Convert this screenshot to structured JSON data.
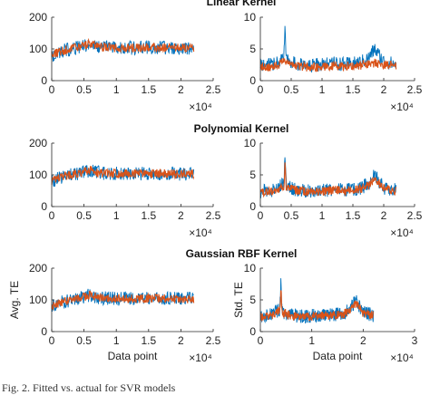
{
  "figure": {
    "caption": "Fig. 2.   Fitted vs. actual for SVR models"
  },
  "colors": {
    "actual": "#0072BD",
    "fitted": "#D95319",
    "axis": "#262626"
  },
  "chart_data": [
    {
      "type": "line",
      "title": "Linear Kernel",
      "xlabel": "",
      "ylabel": "",
      "xlim": [
        0,
        2.5
      ],
      "ylim": [
        0,
        200
      ],
      "xticks": [
        "0",
        "0.5",
        "1",
        "1.5",
        "2",
        "2.5"
      ],
      "yticks": [
        "0",
        "100",
        "200"
      ],
      "x_exponent": "×10⁴",
      "series": [
        {
          "role": "actual",
          "x": [
            0,
            0.1,
            0.2,
            0.3,
            0.4,
            0.5,
            0.6,
            0.7,
            0.8,
            1.0,
            1.2,
            1.4,
            1.6,
            1.8,
            2.0,
            2.2
          ],
          "values": [
            80,
            88,
            95,
            100,
            105,
            110,
            115,
            108,
            105,
            104,
            103,
            104,
            105,
            104,
            103,
            104
          ]
        },
        {
          "role": "fitted",
          "x": [
            0,
            0.1,
            0.2,
            0.3,
            0.4,
            0.5,
            0.6,
            0.7,
            0.8,
            1.0,
            1.2,
            1.4,
            1.6,
            1.8,
            2.0,
            2.2
          ],
          "values": [
            82,
            90,
            96,
            101,
            106,
            111,
            116,
            107,
            104,
            104,
            103,
            104,
            104,
            104,
            103,
            104
          ]
        }
      ]
    },
    {
      "type": "line",
      "title": "",
      "xlabel": "",
      "ylabel": "",
      "xlim": [
        0,
        2.5
      ],
      "ylim": [
        0,
        10
      ],
      "xticks": [
        "0",
        "0.5",
        "1",
        "1.5",
        "2",
        "2.5"
      ],
      "yticks": [
        "0",
        "5",
        "10"
      ],
      "x_exponent": "×10⁴",
      "series": [
        {
          "role": "actual",
          "x": [
            0,
            0.2,
            0.38,
            0.4,
            0.42,
            0.6,
            0.8,
            1.0,
            1.2,
            1.4,
            1.6,
            1.75,
            1.85,
            2.0,
            2.2
          ],
          "values": [
            2.5,
            2.6,
            3.5,
            8,
            3.2,
            2.6,
            2.4,
            2.5,
            2.7,
            2.6,
            2.8,
            3.5,
            5,
            3,
            2.6
          ]
        },
        {
          "role": "fitted",
          "x": [
            0,
            0.2,
            0.38,
            0.4,
            0.42,
            0.6,
            0.8,
            1.0,
            1.2,
            1.4,
            1.6,
            1.75,
            1.85,
            2.0,
            2.2
          ],
          "values": [
            2.2,
            2.2,
            3,
            3.5,
            2.8,
            2.3,
            2.1,
            2.2,
            2.3,
            2.3,
            2.4,
            2.6,
            2.8,
            2.5,
            2.3
          ]
        }
      ]
    },
    {
      "type": "line",
      "title": "Polynomial Kernel",
      "xlabel": "",
      "ylabel": "",
      "xlim": [
        0,
        2.5
      ],
      "ylim": [
        0,
        200
      ],
      "xticks": [
        "0",
        "0.5",
        "1",
        "1.5",
        "2",
        "2.5"
      ],
      "yticks": [
        "0",
        "100",
        "200"
      ],
      "x_exponent": "×10⁴",
      "series": [
        {
          "role": "actual",
          "x": [
            0,
            0.1,
            0.2,
            0.3,
            0.4,
            0.5,
            0.6,
            0.7,
            0.8,
            1.0,
            1.2,
            1.4,
            1.6,
            1.8,
            2.0,
            2.2
          ],
          "values": [
            80,
            88,
            95,
            100,
            105,
            110,
            115,
            108,
            105,
            104,
            103,
            104,
            105,
            104,
            103,
            104
          ]
        },
        {
          "role": "fitted",
          "x": [
            0,
            0.1,
            0.2,
            0.3,
            0.4,
            0.5,
            0.6,
            0.7,
            0.8,
            1.0,
            1.2,
            1.4,
            1.6,
            1.8,
            2.0,
            2.2
          ],
          "values": [
            82,
            90,
            96,
            101,
            106,
            111,
            116,
            107,
            104,
            104,
            103,
            104,
            104,
            104,
            103,
            104
          ]
        }
      ]
    },
    {
      "type": "line",
      "title": "",
      "xlabel": "",
      "ylabel": "",
      "xlim": [
        0,
        2.5
      ],
      "ylim": [
        0,
        10
      ],
      "xticks": [
        "0",
        "0.5",
        "1",
        "1.5",
        "2",
        "2.5"
      ],
      "yticks": [
        "0",
        "5",
        "10"
      ],
      "x_exponent": "×10⁴",
      "series": [
        {
          "role": "actual",
          "x": [
            0,
            0.2,
            0.38,
            0.4,
            0.42,
            0.6,
            0.8,
            1.0,
            1.2,
            1.4,
            1.6,
            1.75,
            1.85,
            2.0,
            2.2
          ],
          "values": [
            2.5,
            2.6,
            3.5,
            8,
            3.2,
            2.6,
            2.4,
            2.5,
            2.7,
            2.6,
            2.8,
            3.5,
            5,
            3,
            2.6
          ]
        },
        {
          "role": "fitted",
          "x": [
            0,
            0.2,
            0.38,
            0.4,
            0.42,
            0.6,
            0.8,
            1.0,
            1.2,
            1.4,
            1.6,
            1.75,
            1.85,
            2.0,
            2.2
          ],
          "values": [
            2.3,
            2.4,
            3.2,
            6.5,
            3,
            2.5,
            2.3,
            2.4,
            2.6,
            2.5,
            2.7,
            3.3,
            4.5,
            2.9,
            2.5
          ]
        }
      ]
    },
    {
      "type": "line",
      "title": "Gaussian RBF Kernel",
      "xlabel": "Data point",
      "ylabel": "Avg. TE",
      "xlim": [
        0,
        2.5
      ],
      "ylim": [
        0,
        200
      ],
      "xticks": [
        "0",
        "0.5",
        "1",
        "1.5",
        "2",
        "2.5"
      ],
      "yticks": [
        "0",
        "100",
        "200"
      ],
      "x_exponent": "×10⁴",
      "series": [
        {
          "role": "actual",
          "x": [
            0,
            0.1,
            0.2,
            0.3,
            0.4,
            0.5,
            0.6,
            0.7,
            0.8,
            1.0,
            1.2,
            1.4,
            1.6,
            1.8,
            2.0,
            2.2
          ],
          "values": [
            80,
            88,
            95,
            100,
            105,
            110,
            115,
            108,
            105,
            104,
            103,
            104,
            105,
            104,
            103,
            104
          ]
        },
        {
          "role": "fitted",
          "x": [
            0,
            0.1,
            0.2,
            0.3,
            0.4,
            0.5,
            0.6,
            0.7,
            0.8,
            1.0,
            1.2,
            1.4,
            1.6,
            1.8,
            2.0,
            2.2
          ],
          "values": [
            81,
            89,
            95,
            100,
            105,
            110,
            115,
            108,
            105,
            104,
            103,
            104,
            105,
            104,
            103,
            104
          ]
        }
      ]
    },
    {
      "type": "line",
      "title": "",
      "xlabel": "Data point",
      "ylabel": "Std. TE",
      "xlim": [
        0,
        3
      ],
      "ylim": [
        0,
        10
      ],
      "xticks": [
        "0",
        "1",
        "2",
        "3"
      ],
      "yticks": [
        "0",
        "5",
        "10"
      ],
      "x_exponent": "×10⁴",
      "series": [
        {
          "role": "actual",
          "x": [
            0,
            0.2,
            0.38,
            0.4,
            0.42,
            0.6,
            0.8,
            1.0,
            1.2,
            1.4,
            1.6,
            1.75,
            1.85,
            2.0,
            2.2
          ],
          "values": [
            2.5,
            2.6,
            3.5,
            8,
            3.2,
            2.6,
            2.4,
            2.5,
            2.7,
            2.6,
            2.8,
            3.5,
            5,
            3,
            2.6
          ]
        },
        {
          "role": "fitted",
          "x": [
            0,
            0.2,
            0.38,
            0.4,
            0.42,
            0.6,
            0.8,
            1.0,
            1.2,
            1.4,
            1.6,
            1.75,
            1.85,
            2.0,
            2.2
          ],
          "values": [
            2.4,
            2.5,
            3.3,
            7,
            3.1,
            2.5,
            2.3,
            2.4,
            2.6,
            2.5,
            2.7,
            3.3,
            4.6,
            2.9,
            2.5
          ]
        }
      ]
    }
  ]
}
